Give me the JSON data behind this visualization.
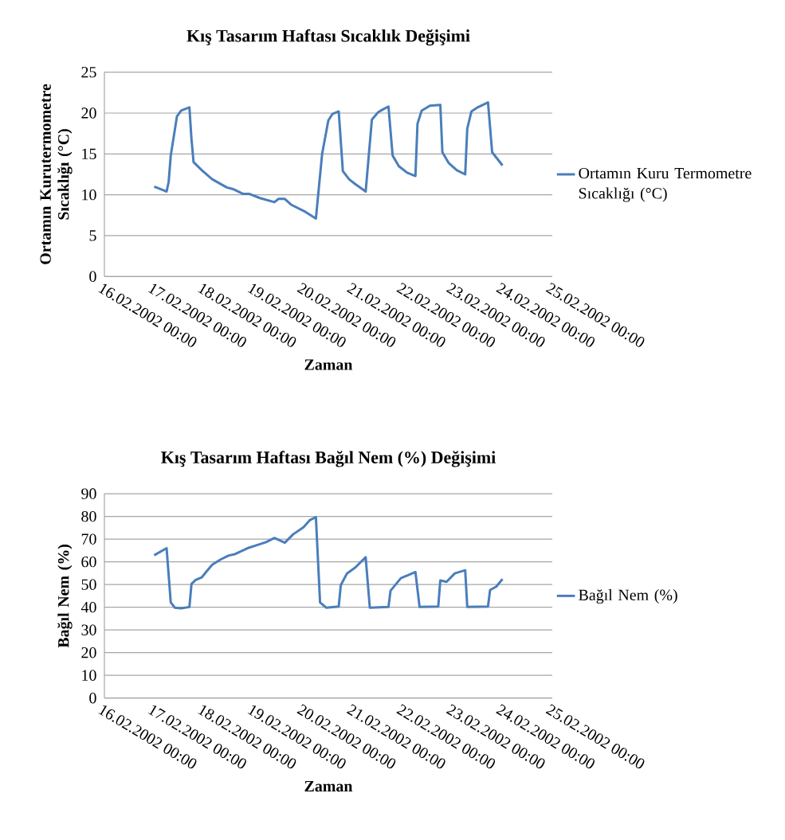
{
  "chart_data": [
    {
      "type": "line",
      "title": "Kış Tasarım Haftası Sıcaklık Değişimi",
      "xlabel": "Zaman",
      "ylabel": "Ortamın Kurutermometre Sıcaklığı (°C)",
      "xlim": [
        "2002-02-16T00:00",
        "2002-02-25T00:00"
      ],
      "xticks": [
        {
          "value": "2002-02-16T00:00",
          "label": "16.02.2002 00:00"
        },
        {
          "value": "2002-02-17T00:00",
          "label": "17.02.2002 00:00"
        },
        {
          "value": "2002-02-18T00:00",
          "label": "18.02.2002 00:00"
        },
        {
          "value": "2002-02-19T00:00",
          "label": "19.02.2002 00:00"
        },
        {
          "value": "2002-02-20T00:00",
          "label": "20.02.2002 00:00"
        },
        {
          "value": "2002-02-21T00:00",
          "label": "21.02.2002 00:00"
        },
        {
          "value": "2002-02-22T00:00",
          "label": "22.02.2002 00:00"
        },
        {
          "value": "2002-02-23T00:00",
          "label": "23.02.2002 00:00"
        },
        {
          "value": "2002-02-24T00:00",
          "label": "24.02.2002 00:00"
        },
        {
          "value": "2002-02-25T00:00",
          "label": "25.02.2002 00:00"
        }
      ],
      "ylim": [
        0,
        25
      ],
      "yticks": [
        0,
        5,
        10,
        15,
        20,
        25
      ],
      "grid": "y",
      "legend": "right",
      "series": [
        {
          "name": "Ortamın Kuru Termometre Sıcaklığı (°C)",
          "color": "#4a7ebb",
          "x": [
            "2002-02-17T00:00",
            "2002-02-17T03:00",
            "2002-02-17T06:00",
            "2002-02-17T07:00",
            "2002-02-17T08:00",
            "2002-02-17T11:00",
            "2002-02-17T13:00",
            "2002-02-17T17:00",
            "2002-02-17T18:00",
            "2002-02-17T19:00",
            "2002-02-17T23:00",
            "2002-02-18T04:00",
            "2002-02-18T11:00",
            "2002-02-18T14:00",
            "2002-02-18T19:00",
            "2002-02-18T22:00",
            "2002-02-19T03:00",
            "2002-02-19T10:00",
            "2002-02-19T12:00",
            "2002-02-19T15:00",
            "2002-02-19T18:00",
            "2002-02-20T01:00",
            "2002-02-20T06:00",
            "2002-02-20T09:00",
            "2002-02-20T12:00",
            "2002-02-20T14:00",
            "2002-02-20T17:00",
            "2002-02-20T19:00",
            "2002-02-20T22:00",
            "2002-02-21T01:00",
            "2002-02-21T06:00",
            "2002-02-21T09:00",
            "2002-02-21T12:00",
            "2002-02-21T14:00",
            "2002-02-21T17:00",
            "2002-02-21T19:00",
            "2002-02-21T22:00",
            "2002-02-22T02:00",
            "2002-02-22T06:00",
            "2002-02-22T07:00",
            "2002-02-22T09:00",
            "2002-02-22T13:00",
            "2002-02-22T18:00",
            "2002-02-22T19:00",
            "2002-02-22T22:00",
            "2002-02-23T02:00",
            "2002-02-23T06:00",
            "2002-02-23T07:00",
            "2002-02-23T09:00",
            "2002-02-23T12:00",
            "2002-02-23T17:00",
            "2002-02-23T19:00",
            "2002-02-24T00:00"
          ],
          "values": [
            11.0,
            10.7,
            10.4,
            11.6,
            14.8,
            19.6,
            20.3,
            20.7,
            16.8,
            14.0,
            13.0,
            11.9,
            10.9,
            10.7,
            10.1,
            10.1,
            9.6,
            9.1,
            9.5,
            9.5,
            8.8,
            7.9,
            7.1,
            15.0,
            19.1,
            19.9,
            20.2,
            12.9,
            11.9,
            11.3,
            10.4,
            19.2,
            20.1,
            20.4,
            20.8,
            14.8,
            13.5,
            12.7,
            12.3,
            18.7,
            20.3,
            20.9,
            21.0,
            15.2,
            13.9,
            13.0,
            12.5,
            18.1,
            20.2,
            20.7,
            21.3,
            15.2,
            13.6
          ]
        }
      ]
    },
    {
      "type": "line",
      "title": "Kış Tasarım Haftası Bağıl Nem (%) Değişimi",
      "xlabel": "Zaman",
      "ylabel": "Bağıl Nem (%)",
      "xlim": [
        "2002-02-16T00:00",
        "2002-02-25T00:00"
      ],
      "xticks": [
        {
          "value": "2002-02-16T00:00",
          "label": "16.02.2002 00:00"
        },
        {
          "value": "2002-02-17T00:00",
          "label": "17.02.2002 00:00"
        },
        {
          "value": "2002-02-18T00:00",
          "label": "18.02.2002 00:00"
        },
        {
          "value": "2002-02-19T00:00",
          "label": "19.02.2002 00:00"
        },
        {
          "value": "2002-02-20T00:00",
          "label": "20.02.2002 00:00"
        },
        {
          "value": "2002-02-21T00:00",
          "label": "21.02.2002 00:00"
        },
        {
          "value": "2002-02-22T00:00",
          "label": "22.02.2002 00:00"
        },
        {
          "value": "2002-02-23T00:00",
          "label": "23.02.2002 00:00"
        },
        {
          "value": "2002-02-24T00:00",
          "label": "24.02.2002 00:00"
        },
        {
          "value": "2002-02-25T00:00",
          "label": "25.02.2002 00:00"
        }
      ],
      "ylim": [
        0,
        90
      ],
      "yticks": [
        0,
        10,
        20,
        30,
        40,
        50,
        60,
        70,
        80,
        90
      ],
      "grid": "y",
      "legend": "right",
      "series": [
        {
          "name": "Bağıl Nem (%)",
          "color": "#4a7ebb",
          "x": [
            "2002-02-17T00:00",
            "2002-02-17T06:00",
            "2002-02-17T08:00",
            "2002-02-17T10:00",
            "2002-02-17T13:00",
            "2002-02-17T17:00",
            "2002-02-17T18:00",
            "2002-02-17T20:00",
            "2002-02-17T23:00",
            "2002-02-18T01:00",
            "2002-02-18T04:00",
            "2002-02-18T08:00",
            "2002-02-18T12:00",
            "2002-02-18T15:00",
            "2002-02-18T21:00",
            "2002-02-19T01:00",
            "2002-02-19T06:00",
            "2002-02-19T10:00",
            "2002-02-19T15:00",
            "2002-02-19T19:00",
            "2002-02-20T00:00",
            "2002-02-20T03:00",
            "2002-02-20T06:00",
            "2002-02-20T08:00",
            "2002-02-20T11:00",
            "2002-02-20T17:00",
            "2002-02-20T18:00",
            "2002-02-20T21:00",
            "2002-02-21T01:00",
            "2002-02-21T06:00",
            "2002-02-21T08:00",
            "2002-02-21T17:00",
            "2002-02-21T18:00",
            "2002-02-21T23:00",
            "2002-02-22T06:00",
            "2002-02-22T08:00",
            "2002-02-22T17:00",
            "2002-02-22T18:00",
            "2002-02-22T21:00",
            "2002-02-23T01:00",
            "2002-02-23T06:00",
            "2002-02-23T07:00",
            "2002-02-23T17:00",
            "2002-02-23T18:00",
            "2002-02-23T21:00",
            "2002-02-24T00:00"
          ],
          "values": [
            62.9,
            66.0,
            42.1,
            39.8,
            39.5,
            40.1,
            50.3,
            52.0,
            53.2,
            55.5,
            58.7,
            61.0,
            62.8,
            63.4,
            66.0,
            67.2,
            68.7,
            70.5,
            68.4,
            72.1,
            75.2,
            78.3,
            79.7,
            42.1,
            39.8,
            40.3,
            49.7,
            54.9,
            57.5,
            62.0,
            39.8,
            40.1,
            47.3,
            52.8,
            55.5,
            40.1,
            40.3,
            51.8,
            51.2,
            54.9,
            56.3,
            40.1,
            40.3,
            47.6,
            49.1,
            52.4
          ]
        }
      ]
    }
  ]
}
